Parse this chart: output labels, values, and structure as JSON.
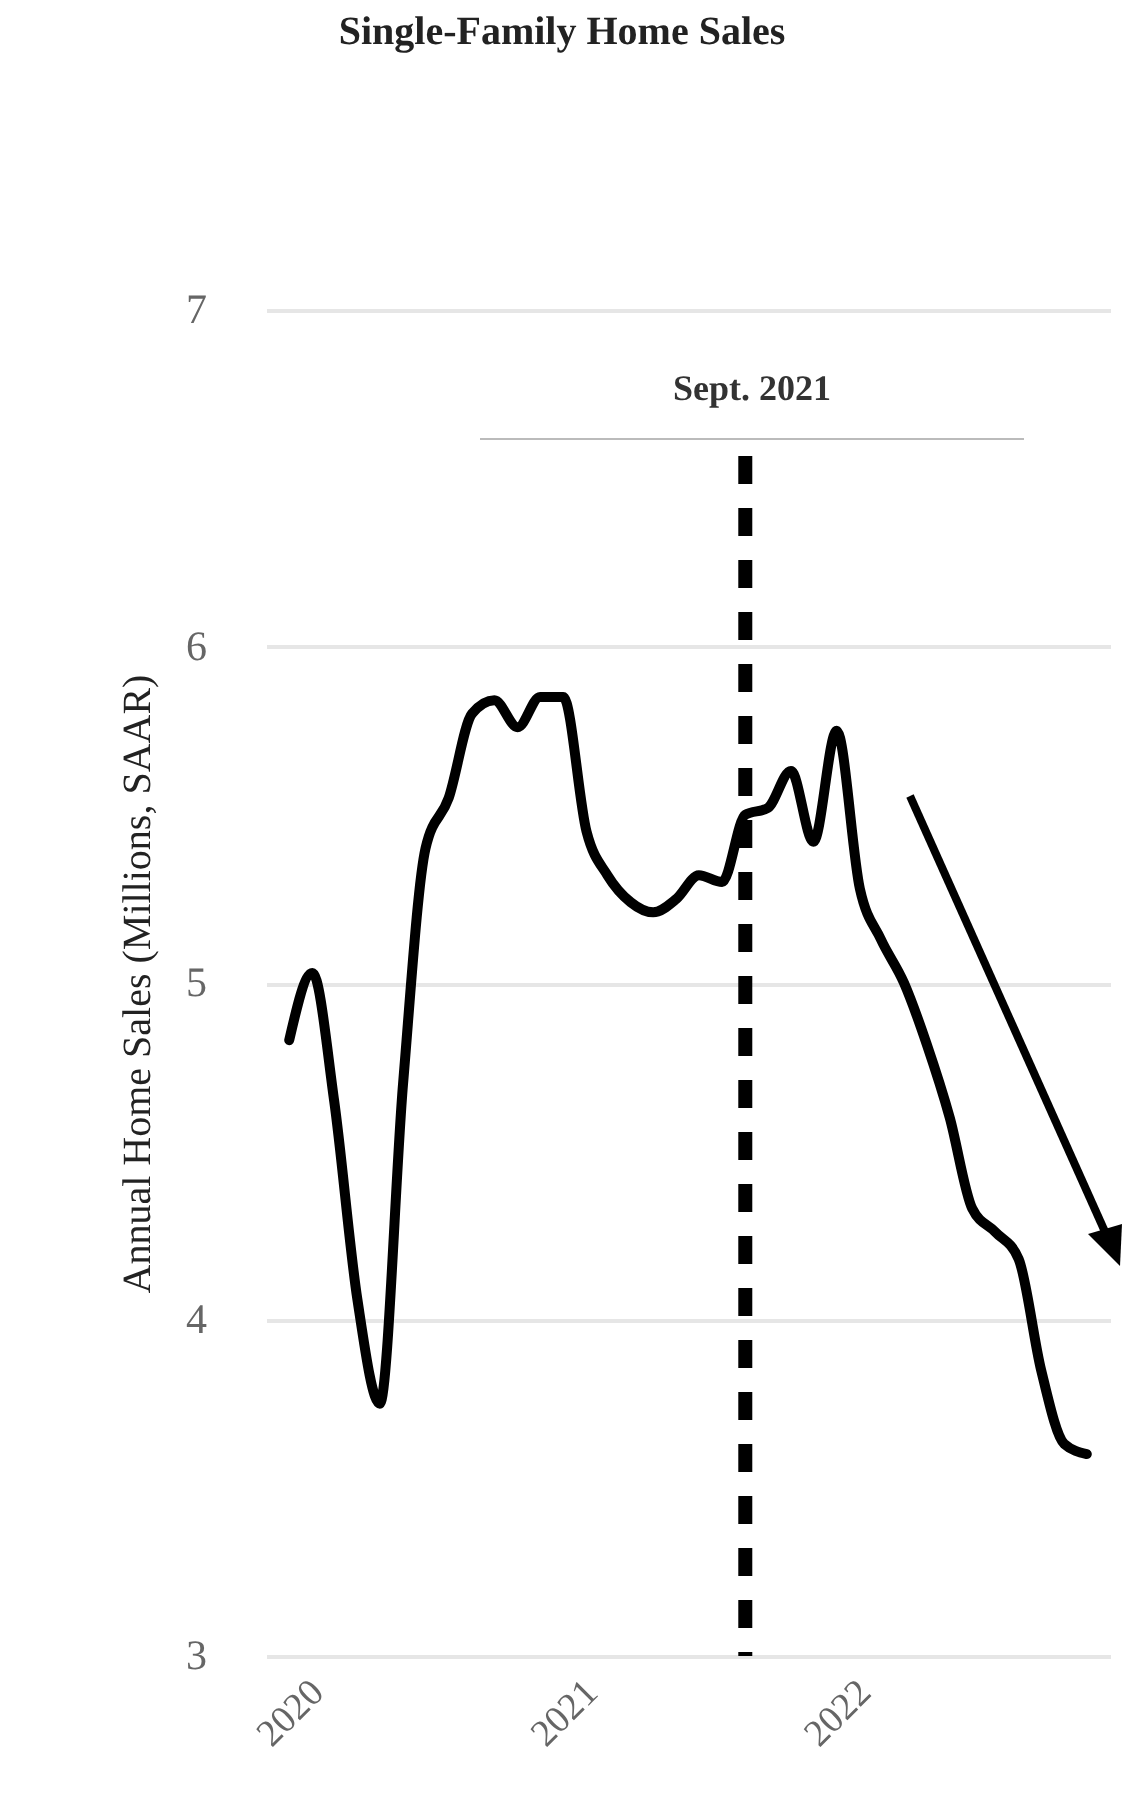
{
  "chart_data": {
    "type": "line",
    "title": "Single-Family Home Sales",
    "ylabel": "Annual Home Sales (Millions, SAAR)",
    "x": [
      "2020-01",
      "2020-02",
      "2020-03",
      "2020-04",
      "2020-05",
      "2020-06",
      "2020-07",
      "2020-08",
      "2020-09",
      "2020-10",
      "2020-11",
      "2020-12",
      "2021-01",
      "2021-02",
      "2021-03",
      "2021-04",
      "2021-05",
      "2021-06",
      "2021-07",
      "2021-08",
      "2021-09",
      "2021-10",
      "2021-11",
      "2021-12",
      "2022-01",
      "2022-02",
      "2022-03",
      "2022-04",
      "2022-05",
      "2022-06",
      "2022-07",
      "2022-08",
      "2022-09",
      "2022-10",
      "2022-11",
      "2022-12"
    ],
    "series": [
      {
        "color": "#000000",
        "values": [
          4.83,
          5.03,
          4.65,
          4.06,
          3.75,
          4.7,
          5.4,
          5.55,
          5.8,
          5.84,
          5.76,
          5.85,
          5.85,
          5.45,
          5.32,
          5.24,
          5.21,
          5.25,
          5.32,
          5.3,
          5.5,
          5.52,
          5.63,
          5.42,
          5.75,
          5.28,
          5.13,
          5.0,
          4.82,
          4.6,
          4.33,
          4.26,
          4.18,
          3.85,
          3.63,
          3.6
        ]
      }
    ],
    "xlim": [
      "2019-12",
      "2023-01"
    ],
    "xticks": [
      "2020",
      "2021",
      "2022"
    ],
    "ylim": [
      3,
      7
    ],
    "yticks": [
      3,
      4,
      5,
      6,
      7
    ],
    "ref_lines": [
      {
        "axis": "x",
        "value": "2021-09",
        "label": "Sept. 2021",
        "color": "#000000",
        "line_style": "dashed"
      }
    ],
    "grid": "y",
    "marker": "none",
    "line_style": "solid"
  }
}
